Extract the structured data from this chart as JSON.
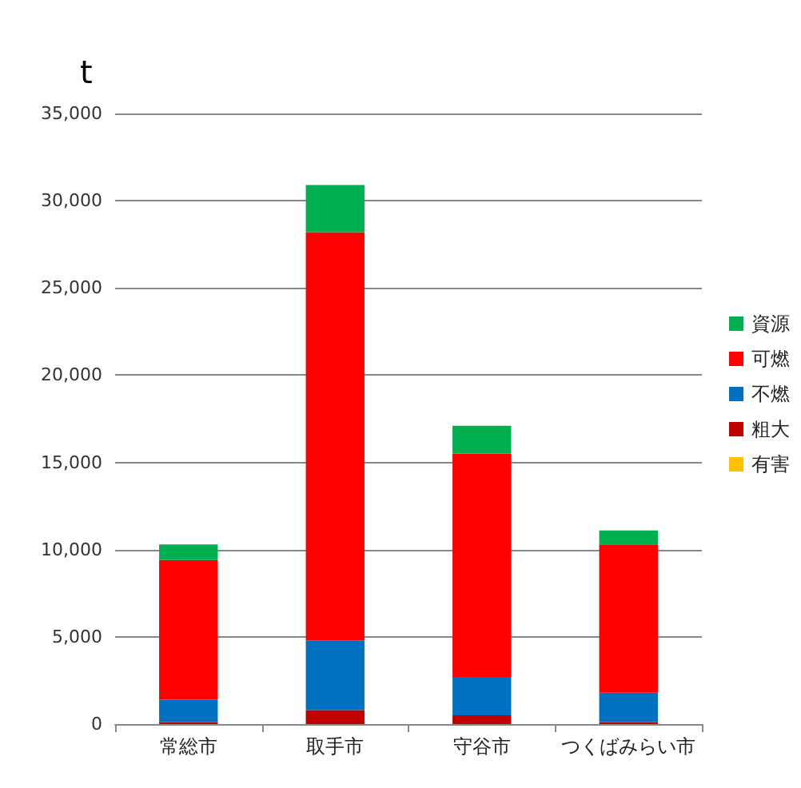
{
  "chart_data": {
    "type": "bar",
    "stacked": true,
    "ylabel": "t",
    "categories": [
      "常総市",
      "取手市",
      "守谷市",
      "つくばみらい市"
    ],
    "series": [
      {
        "name": "有害",
        "color": "#ffc000",
        "values": [
          0,
          0,
          0,
          0
        ]
      },
      {
        "name": "粗大",
        "color": "#c00000",
        "values": [
          100,
          800,
          500,
          100
        ]
      },
      {
        "name": "不燃",
        "color": "#0070c0",
        "values": [
          1300,
          4000,
          2200,
          1700
        ]
      },
      {
        "name": "可燃",
        "color": "#ff0000",
        "values": [
          8000,
          23400,
          12800,
          8500
        ]
      },
      {
        "name": "資源",
        "color": "#00b050",
        "values": [
          900,
          2700,
          1600,
          800
        ]
      }
    ],
    "ylim": [
      0,
      35000
    ],
    "yticks": [
      0,
      {
        "value": 5000,
        "label": "5,000"
      },
      {
        "value": 10000,
        "label": "10,000"
      },
      {
        "value": 15000,
        "label": "15,000"
      },
      {
        "value": 20000,
        "label": "20,000"
      },
      {
        "value": 25000,
        "label": "25,000"
      },
      {
        "value": 30000,
        "label": "30,000"
      },
      {
        "value": 35000,
        "label": "35,000"
      }
    ],
    "grid": "y",
    "legend": "right"
  }
}
